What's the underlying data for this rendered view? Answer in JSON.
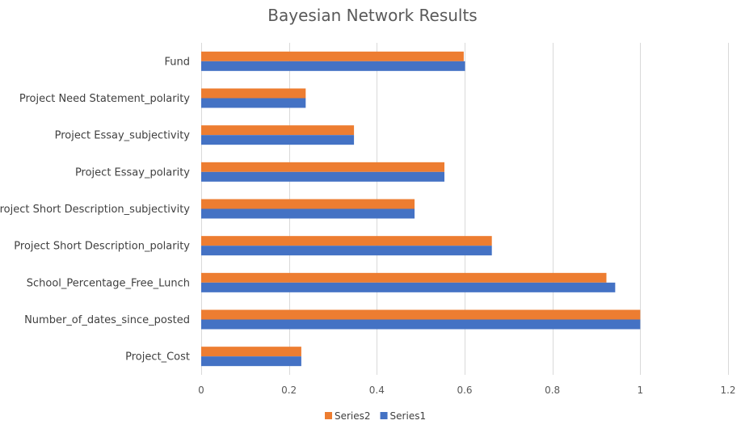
{
  "chart_data": {
    "type": "bar",
    "orientation": "horizontal",
    "title": "Bayesian Network Results",
    "xlabel": "",
    "ylabel": "",
    "xlim": [
      0,
      1.2
    ],
    "x_ticks": [
      "0",
      "0.2",
      "0.4",
      "0.6",
      "0.8",
      "1",
      "1.2"
    ],
    "x_tick_values": [
      0,
      0.2,
      0.4,
      0.6,
      0.8,
      1.0,
      1.2
    ],
    "grid": "vertical",
    "legend_position": "bottom",
    "categories": [
      "Fund",
      "Project Need Statement_polarity",
      "Project Essay_subjectivity",
      "Project Essay_polarity",
      "Project Short Description_subjectivity",
      "Project Short Description_polarity",
      "School_Percentage_Free_Lunch",
      "Number_of_dates_since_posted",
      "Project_Cost"
    ],
    "series": [
      {
        "name": "Series2",
        "color": "#ed7d31",
        "values": [
          0.598,
          0.238,
          0.348,
          0.554,
          0.486,
          0.662,
          0.923,
          1.0,
          0.228
        ]
      },
      {
        "name": "Series1",
        "color": "#4472c4",
        "values": [
          0.601,
          0.238,
          0.348,
          0.554,
          0.486,
          0.662,
          0.943,
          1.0,
          0.228
        ]
      }
    ],
    "legend_order": [
      "Series2",
      "Series1"
    ]
  }
}
